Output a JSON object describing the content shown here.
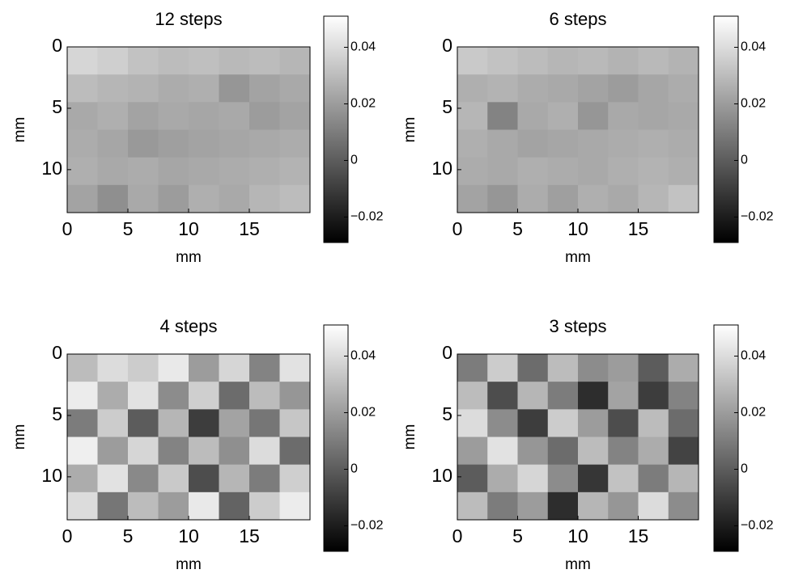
{
  "chart_data": [
    {
      "type": "heatmap",
      "title": "12 steps",
      "xlabel": "mm",
      "ylabel": "mm",
      "colormap": "gray",
      "xlim": [
        0,
        20
      ],
      "ylim": [
        13.5,
        0
      ],
      "xticks": [
        0,
        5,
        10,
        15
      ],
      "yticks": [
        0,
        5,
        10
      ],
      "clim": [
        -0.029,
        0.051
      ],
      "cticks": [
        {
          "value": -0.02,
          "label": "−0.02"
        },
        0,
        0.02,
        0.04
      ],
      "z": [
        [
          0.038,
          0.036,
          0.032,
          0.03,
          0.031,
          0.029,
          0.03,
          0.028
        ],
        [
          0.03,
          0.028,
          0.027,
          0.025,
          0.026,
          0.018,
          0.022,
          0.024
        ],
        [
          0.024,
          0.026,
          0.022,
          0.024,
          0.023,
          0.024,
          0.02,
          0.022
        ],
        [
          0.025,
          0.023,
          0.019,
          0.021,
          0.022,
          0.023,
          0.024,
          0.025
        ],
        [
          0.026,
          0.024,
          0.025,
          0.023,
          0.024,
          0.025,
          0.026,
          0.027
        ],
        [
          0.022,
          0.016,
          0.024,
          0.02,
          0.026,
          0.024,
          0.028,
          0.03
        ]
      ]
    },
    {
      "type": "heatmap",
      "title": "6 steps",
      "xlabel": "mm",
      "ylabel": "mm",
      "colormap": "gray",
      "xlim": [
        0,
        20
      ],
      "ylim": [
        13.5,
        0
      ],
      "xticks": [
        0,
        5,
        10,
        15
      ],
      "yticks": [
        0,
        5,
        10
      ],
      "clim": [
        -0.029,
        0.051
      ],
      "cticks": [
        {
          "value": -0.02,
          "label": "−0.02"
        },
        0,
        0.02,
        0.04
      ],
      "z": [
        [
          0.034,
          0.032,
          0.03,
          0.028,
          0.029,
          0.027,
          0.029,
          0.027
        ],
        [
          0.026,
          0.027,
          0.025,
          0.024,
          0.022,
          0.02,
          0.023,
          0.025
        ],
        [
          0.028,
          0.012,
          0.024,
          0.026,
          0.018,
          0.024,
          0.023,
          0.024
        ],
        [
          0.026,
          0.024,
          0.022,
          0.023,
          0.024,
          0.025,
          0.026,
          0.025
        ],
        [
          0.025,
          0.024,
          0.026,
          0.025,
          0.024,
          0.026,
          0.027,
          0.026
        ],
        [
          0.022,
          0.018,
          0.025,
          0.021,
          0.026,
          0.024,
          0.028,
          0.032
        ]
      ]
    },
    {
      "type": "heatmap",
      "title": "4 steps",
      "xlabel": "mm",
      "ylabel": "mm",
      "colormap": "gray",
      "xlim": [
        0,
        20
      ],
      "ylim": [
        13.5,
        0
      ],
      "xticks": [
        0,
        5,
        10,
        15
      ],
      "yticks": [
        0,
        5,
        10
      ],
      "clim": [
        -0.029,
        0.051
      ],
      "cticks": [
        {
          "value": -0.02,
          "label": "−0.02"
        },
        0,
        0.02,
        0.04
      ],
      "z": [
        [
          0.03,
          0.04,
          0.035,
          0.044,
          0.02,
          0.038,
          0.012,
          0.042
        ],
        [
          0.045,
          0.025,
          0.042,
          0.015,
          0.036,
          0.005,
          0.03,
          0.018
        ],
        [
          0.01,
          0.035,
          0.0,
          0.028,
          -0.01,
          0.022,
          0.008,
          0.033
        ],
        [
          0.046,
          0.02,
          0.038,
          0.012,
          0.03,
          0.016,
          0.04,
          0.005
        ],
        [
          0.025,
          0.042,
          0.014,
          0.034,
          -0.005,
          0.028,
          0.01,
          0.036
        ],
        [
          0.04,
          0.008,
          0.03,
          0.02,
          0.044,
          0.002,
          0.035,
          0.045
        ]
      ]
    },
    {
      "type": "heatmap",
      "title": "3 steps",
      "xlabel": "mm",
      "ylabel": "mm",
      "colormap": "gray",
      "xlim": [
        0,
        20
      ],
      "ylim": [
        13.5,
        0
      ],
      "xticks": [
        0,
        5,
        10,
        15
      ],
      "yticks": [
        0,
        5,
        10
      ],
      "clim": [
        -0.029,
        0.051
      ],
      "cticks": [
        {
          "value": -0.02,
          "label": "−0.02"
        },
        0,
        0.02,
        0.04
      ],
      "z": [
        [
          0.01,
          0.035,
          0.005,
          0.03,
          0.015,
          0.02,
          0.0,
          0.025
        ],
        [
          0.03,
          -0.005,
          0.028,
          0.01,
          -0.015,
          0.022,
          -0.01,
          0.012
        ],
        [
          0.04,
          0.015,
          -0.01,
          0.035,
          0.02,
          -0.005,
          0.03,
          0.005
        ],
        [
          0.02,
          0.042,
          0.018,
          0.005,
          0.03,
          0.012,
          0.025,
          -0.008
        ],
        [
          0.0,
          0.025,
          0.038,
          0.015,
          -0.012,
          0.032,
          0.01,
          0.028
        ],
        [
          0.03,
          0.01,
          0.02,
          -0.015,
          0.028,
          0.018,
          0.04,
          0.015
        ]
      ]
    }
  ]
}
